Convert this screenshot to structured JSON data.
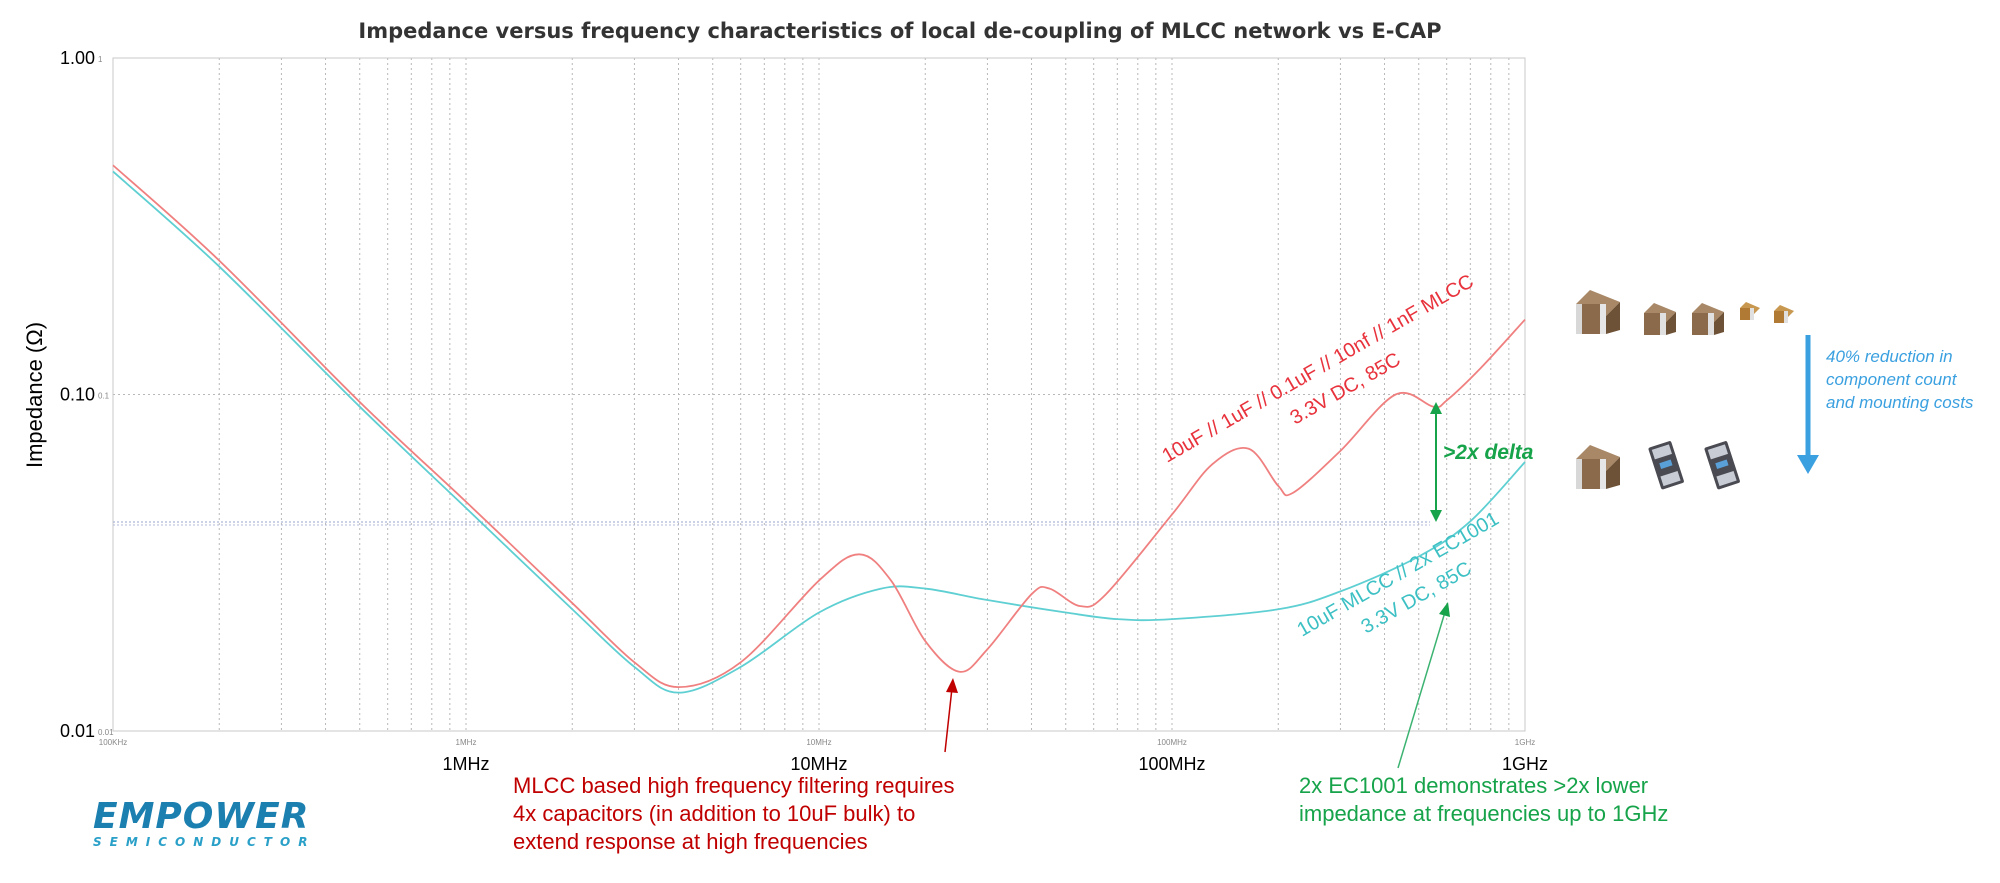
{
  "chart_data": {
    "type": "line",
    "title": "Impedance versus frequency characteristics of local de-coupling of MLCC network vs E-CAP",
    "ylabel": "Impedance (Ω)",
    "xlabel": "",
    "x_scale": "log",
    "y_scale": "log",
    "xlim": [
      100000,
      1000000000
    ],
    "ylim": [
      0.01,
      1.0
    ],
    "grid": true,
    "y_tick_labels": [
      "1.00",
      "0.10",
      "0.01"
    ],
    "y_tick_small_labels": [
      "1",
      "0.1",
      "0.01"
    ],
    "x_tick_labels": [
      "1MHz",
      "10MHz",
      "100MHz",
      "1GHz"
    ],
    "x_tick_small_labels": [
      "100KHz",
      "1MHz",
      "10MHz",
      "100MHz",
      "1GHz"
    ],
    "series": [
      {
        "name": "10uF // 1uF // 0.1uF // 10nf // 1nF MLCC 3.3V DC, 85C",
        "color": "#f08080",
        "x": [
          100000,
          200000,
          500000,
          1000000,
          2000000,
          3000000,
          4000000,
          6000000,
          10000000,
          13000000,
          16000000,
          20000000,
          25000000,
          30000000,
          40000000,
          45000000,
          55000000,
          65000000,
          100000000,
          130000000,
          165000000,
          200000000,
          220000000,
          300000000,
          430000000,
          550000000,
          600000000,
          750000000,
          1000000000
        ],
        "y": [
          0.48,
          0.25,
          0.095,
          0.048,
          0.024,
          0.016,
          0.0135,
          0.016,
          0.028,
          0.0335,
          0.028,
          0.0185,
          0.015,
          0.0175,
          0.0255,
          0.0265,
          0.0235,
          0.0255,
          0.044,
          0.062,
          0.069,
          0.0535,
          0.051,
          0.068,
          0.1,
          0.092,
          0.096,
          0.12,
          0.167
        ]
      },
      {
        "name": "10uF MLCC // 2x EC1001 3.3V DC, 85C",
        "color": "#5ecfd2",
        "x": [
          100000,
          200000,
          500000,
          1000000,
          2000000,
          3000000,
          4000000,
          6000000,
          10000000,
          15000000,
          20000000,
          30000000,
          50000000,
          70000000,
          100000000,
          200000000,
          300000000,
          500000000,
          700000000,
          1000000000
        ],
        "y": [
          0.46,
          0.24,
          0.092,
          0.046,
          0.023,
          0.0155,
          0.013,
          0.0155,
          0.0225,
          0.0265,
          0.0265,
          0.0245,
          0.0225,
          0.0215,
          0.0215,
          0.023,
          0.026,
          0.033,
          0.042,
          0.063
        ]
      }
    ],
    "annotations": {
      "delta_label": ">2x delta",
      "mlcc_note": [
        "MLCC based high frequency filtering requires",
        "4x capacitors (in addition to 10uF bulk) to",
        "extend response at high frequencies"
      ],
      "ec_note": [
        "2x EC1001 demonstrates >2x lower",
        "impedance at frequencies up to 1GHz"
      ],
      "reduction_note": [
        "40% reduction in",
        "component count",
        "and mounting costs"
      ]
    },
    "curve_labels": {
      "mlcc": [
        "10uF // 1uF // 0.1uF // 10nf // 1nF MLCC",
        "3.3V DC, 85C"
      ],
      "ecap": [
        "10uF MLCC // 2x EC1001",
        "3.3V DC, 85C"
      ]
    }
  },
  "logo": {
    "name": "EMPOWER",
    "sub": "SEMICONDUCTOR"
  },
  "colors": {
    "mlcc": "#f08080",
    "ecap": "#5ecfd2",
    "green": "#16a34a",
    "red": "#c00000",
    "blue": "#3aa0e0"
  }
}
